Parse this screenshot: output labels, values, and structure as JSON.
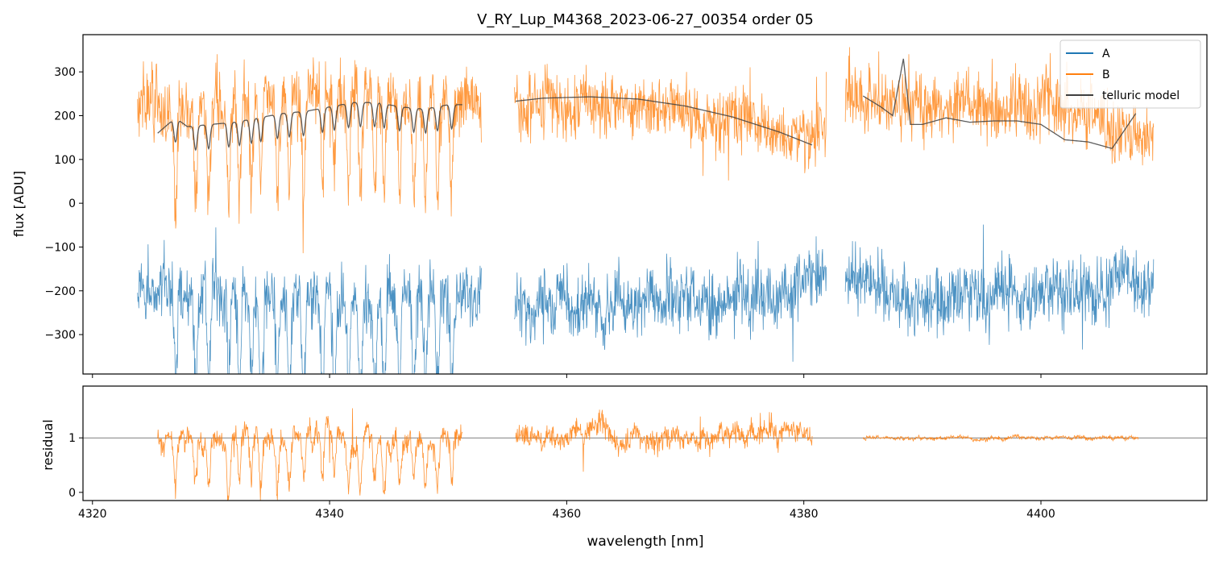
{
  "chart_data": [
    {
      "panel": "top",
      "type": "line",
      "title": "V_RY_Lup_M4368_2023-06-27_00354  order 05",
      "xlabel": "",
      "ylabel": "flux [ADU]",
      "xlim": [
        4319.2,
        4414.0
      ],
      "ylim": [
        -390,
        385
      ],
      "yticks": [
        -300,
        -200,
        -100,
        0,
        100,
        200,
        300
      ],
      "yticklabels": [
        "−300",
        "−200",
        "−100",
        "0",
        "100",
        "200",
        "300"
      ],
      "xticks": [
        4320,
        4340,
        4360,
        4380,
        4400
      ],
      "legend": {
        "placement": "top-right",
        "entries": [
          "A",
          "B",
          "telluric model"
        ]
      },
      "series": [
        {
          "name": "A",
          "color": "#1f77b4",
          "segments": [
            [
              4323.8,
              4352.8
            ],
            [
              4355.6,
              4381.9
            ],
            [
              4383.5,
              4409.5
            ]
          ],
          "mean": -225,
          "noise_amplitude": 95,
          "x": [
            4324,
            4330,
            4336,
            4342,
            4348,
            4352,
            4356,
            4362,
            4368,
            4374,
            4380,
            4384,
            4390,
            4396,
            4402,
            4408
          ],
          "values": [
            -200,
            -195,
            -210,
            -225,
            -205,
            -200,
            -240,
            -235,
            -230,
            -215,
            -180,
            -180,
            -215,
            -205,
            -200,
            -190
          ]
        },
        {
          "name": "B",
          "color": "#ff7f0e",
          "segments": [
            [
              4323.8,
              4352.8
            ],
            [
              4355.6,
              4381.9
            ],
            [
              4383.5,
              4409.5
            ]
          ],
          "mean": 235,
          "noise_amplitude": 90,
          "x": [
            4324,
            4330,
            4336,
            4342,
            4348,
            4352,
            4356,
            4362,
            4368,
            4374,
            4380,
            4384,
            4390,
            4396,
            4402,
            4408
          ],
          "values": [
            230,
            215,
            250,
            260,
            245,
            240,
            225,
            220,
            215,
            190,
            160,
            240,
            220,
            225,
            220,
            150
          ]
        },
        {
          "name": "telluric model",
          "color": "#404040",
          "segments": [
            {
              "x": [
                4325.5,
                4327,
                4328,
                4330,
                4332,
                4334,
                4336,
                4338,
                4340,
                4342,
                4344,
                4346,
                4348,
                4350,
                4351.2
              ],
              "values": [
                160,
                195,
                175,
                180,
                185,
                195,
                205,
                210,
                220,
                230,
                230,
                220,
                215,
                225,
                225
              ]
            },
            {
              "x": [
                4355.7,
                4358,
                4362,
                4366,
                4370,
                4374,
                4378,
                4380.7
              ],
              "values": [
                233,
                240,
                243,
                238,
                222,
                197,
                162,
                133
              ]
            },
            {
              "x": [
                4385,
                4386.5,
                4387.5,
                4388.4,
                4389,
                4390,
                4392,
                4394,
                4396,
                4398,
                4400,
                4402,
                4404,
                4406,
                4408
              ],
              "values": [
                245,
                220,
                200,
                330,
                180,
                180,
                195,
                185,
                188,
                188,
                180,
                145,
                140,
                125,
                205
              ]
            }
          ],
          "dips": [
            4327.0,
            4328.7,
            4329.8,
            4331.5,
            4332.4,
            4333.4,
            4334.2,
            4335.6,
            4336.6,
            4337.8,
            4339.4,
            4340.4,
            4341.6,
            4342.6,
            4343.8,
            4344.6,
            4345.9,
            4347.1,
            4348.1,
            4349.1,
            4350.3
          ],
          "dip_depth": 55
        }
      ]
    },
    {
      "panel": "bottom",
      "type": "line",
      "title": "",
      "xlabel": "wavelength [nm]",
      "ylabel": "residual",
      "xlim": [
        4319.2,
        4414.0
      ],
      "ylim": [
        -0.15,
        1.95
      ],
      "yticks": [
        0,
        1
      ],
      "yticklabels": [
        "0",
        "1"
      ],
      "xticks": [
        4320,
        4340,
        4360,
        4380,
        4400
      ],
      "xticklabels": [
        "4320",
        "4340",
        "4360",
        "4380",
        "4400"
      ],
      "reference_line": 1,
      "series": [
        {
          "name": "B residual",
          "color": "#ff7f0e",
          "segments": [
            {
              "x0": 4325.5,
              "x1": 4351.2,
              "noise": 0.3
            },
            {
              "x0": 4355.7,
              "x1": 4380.7,
              "noise": 0.28
            },
            {
              "x0": 4385.0,
              "x1": 4408.2,
              "noise": 0.05
            }
          ],
          "mean": 1.0
        }
      ]
    }
  ]
}
